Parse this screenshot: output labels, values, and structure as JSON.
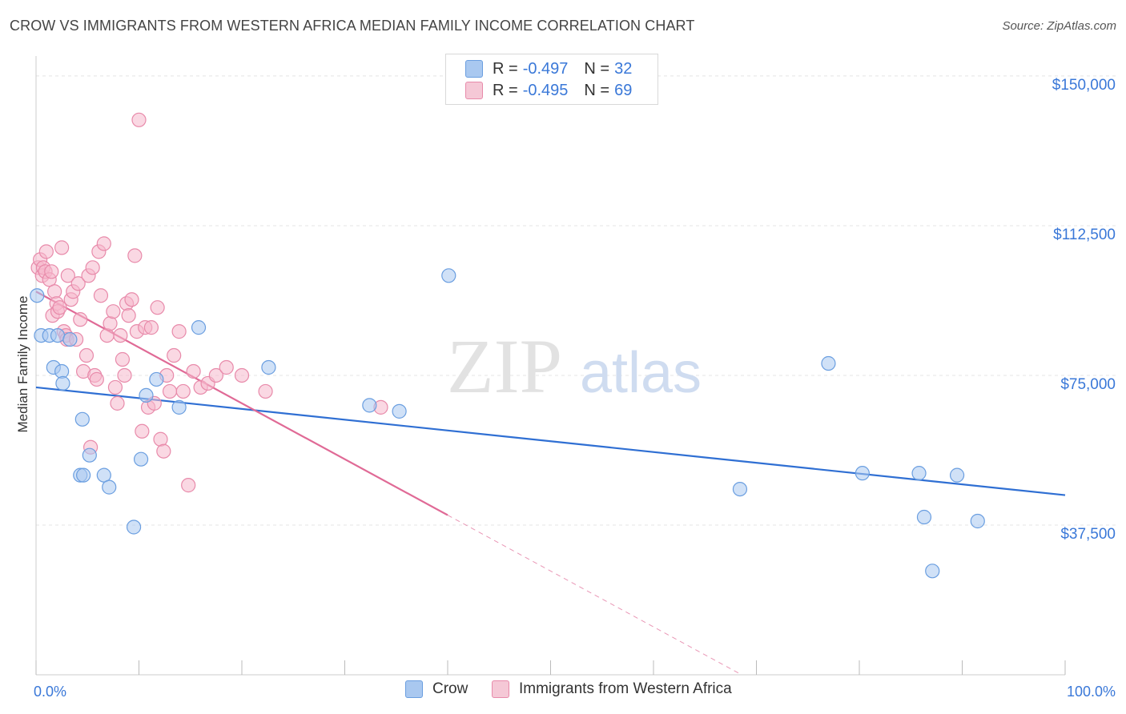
{
  "title": "CROW VS IMMIGRANTS FROM WESTERN AFRICA MEDIAN FAMILY INCOME CORRELATION CHART",
  "source": "Source: ZipAtlas.com",
  "watermark": {
    "zip": "ZIP",
    "atlas": "atlas"
  },
  "legend": {
    "rows": [
      {
        "r_label": "R =",
        "r_value": "-0.497",
        "n_label": "N =",
        "n_value": "32"
      },
      {
        "r_label": "R =",
        "r_value": "-0.495",
        "n_label": "N =",
        "n_value": "69"
      }
    ]
  },
  "bottom_legend": {
    "crow": "Crow",
    "immigrants": "Immigrants from Western Africa"
  },
  "colors": {
    "crow_fill": "#a9c8f0",
    "crow_stroke": "#6a9ee0",
    "crow_line": "#2f6fd3",
    "imm_fill": "#f5b8cc",
    "imm_stroke": "#e88aaa",
    "imm_line": "#e06a96",
    "axis_text": "#3a78d8",
    "grid": "#e4e4e4"
  },
  "chart_data": {
    "type": "scatter",
    "title": "CROW VS IMMIGRANTS FROM WESTERN AFRICA MEDIAN FAMILY INCOME CORRELATION CHART",
    "xlabel": "",
    "ylabel": "Median Family Income",
    "xlim": [
      0,
      100
    ],
    "ylim": [
      0,
      155000
    ],
    "x_tick_labels": [
      "0.0%",
      "100.0%"
    ],
    "y_ticks": [
      37500,
      75000,
      112500,
      150000
    ],
    "y_tick_labels": [
      "$37,500",
      "$75,000",
      "$112,500",
      "$150,000"
    ],
    "grid": true,
    "legend_position": "top-center",
    "series": [
      {
        "name": "Crow",
        "r": -0.497,
        "n": 32,
        "trend": {
          "x0": 0,
          "y0": 72000,
          "x1": 100,
          "y1": 45000
        },
        "points": [
          [
            0.1,
            95000
          ],
          [
            0.5,
            85000
          ],
          [
            1.3,
            85000
          ],
          [
            2.1,
            85000
          ],
          [
            3.3,
            84000
          ],
          [
            1.7,
            77000
          ],
          [
            2.5,
            76000
          ],
          [
            2.6,
            73000
          ],
          [
            4.5,
            64000
          ],
          [
            5.2,
            55000
          ],
          [
            4.3,
            50000
          ],
          [
            4.6,
            50000
          ],
          [
            6.6,
            50000
          ],
          [
            7.1,
            47000
          ],
          [
            9.5,
            37000
          ],
          [
            10.2,
            54000
          ],
          [
            10.7,
            70000
          ],
          [
            11.7,
            74000
          ],
          [
            13.9,
            67000
          ],
          [
            15.8,
            87000
          ],
          [
            22.6,
            77000
          ],
          [
            32.4,
            67500
          ],
          [
            35.3,
            66000
          ],
          [
            40.1,
            100000
          ],
          [
            68.4,
            46500
          ],
          [
            77.0,
            78000
          ],
          [
            80.3,
            50500
          ],
          [
            85.8,
            50500
          ],
          [
            89.5,
            50000
          ],
          [
            86.3,
            39500
          ],
          [
            91.5,
            38500
          ],
          [
            87.1,
            26000
          ]
        ]
      },
      {
        "name": "Immigrants from Western Africa",
        "r": -0.495,
        "n": 69,
        "trend": {
          "x0": 0,
          "y0": 96000,
          "x1": 40,
          "y1": 40000,
          "dash_x1": 70,
          "dash_y1": -2000
        },
        "points": [
          [
            0.2,
            102000
          ],
          [
            0.4,
            104000
          ],
          [
            0.6,
            100000
          ],
          [
            0.7,
            102000
          ],
          [
            0.9,
            101000
          ],
          [
            1.0,
            106000
          ],
          [
            1.3,
            99000
          ],
          [
            1.5,
            101000
          ],
          [
            1.6,
            90000
          ],
          [
            1.8,
            96000
          ],
          [
            2.0,
            93000
          ],
          [
            2.1,
            91000
          ],
          [
            2.3,
            92000
          ],
          [
            2.5,
            107000
          ],
          [
            2.7,
            86000
          ],
          [
            2.9,
            85000
          ],
          [
            3.0,
            84000
          ],
          [
            3.1,
            100000
          ],
          [
            3.4,
            94000
          ],
          [
            3.6,
            96000
          ],
          [
            3.9,
            84000
          ],
          [
            4.1,
            98000
          ],
          [
            4.3,
            89000
          ],
          [
            4.6,
            76000
          ],
          [
            4.9,
            80000
          ],
          [
            5.1,
            100000
          ],
          [
            5.3,
            57000
          ],
          [
            5.5,
            102000
          ],
          [
            5.7,
            75000
          ],
          [
            5.9,
            74000
          ],
          [
            6.1,
            106000
          ],
          [
            6.3,
            95000
          ],
          [
            6.6,
            108000
          ],
          [
            6.9,
            85000
          ],
          [
            7.2,
            88000
          ],
          [
            7.5,
            91000
          ],
          [
            7.7,
            72000
          ],
          [
            7.9,
            68000
          ],
          [
            8.2,
            85000
          ],
          [
            8.4,
            79000
          ],
          [
            8.6,
            75000
          ],
          [
            8.8,
            93000
          ],
          [
            9.0,
            90000
          ],
          [
            9.3,
            94000
          ],
          [
            9.6,
            105000
          ],
          [
            9.8,
            86000
          ],
          [
            10.0,
            139000
          ],
          [
            10.3,
            61000
          ],
          [
            10.6,
            87000
          ],
          [
            10.9,
            67000
          ],
          [
            11.2,
            87000
          ],
          [
            11.5,
            68000
          ],
          [
            11.8,
            92000
          ],
          [
            12.1,
            59000
          ],
          [
            12.4,
            56000
          ],
          [
            12.7,
            75000
          ],
          [
            13.0,
            71000
          ],
          [
            13.4,
            80000
          ],
          [
            13.9,
            86000
          ],
          [
            14.3,
            71000
          ],
          [
            14.8,
            47500
          ],
          [
            15.3,
            76000
          ],
          [
            16.0,
            72000
          ],
          [
            16.7,
            73000
          ],
          [
            17.5,
            75000
          ],
          [
            18.5,
            77000
          ],
          [
            20.0,
            75000
          ],
          [
            22.3,
            71000
          ],
          [
            33.5,
            67000
          ]
        ]
      }
    ]
  }
}
